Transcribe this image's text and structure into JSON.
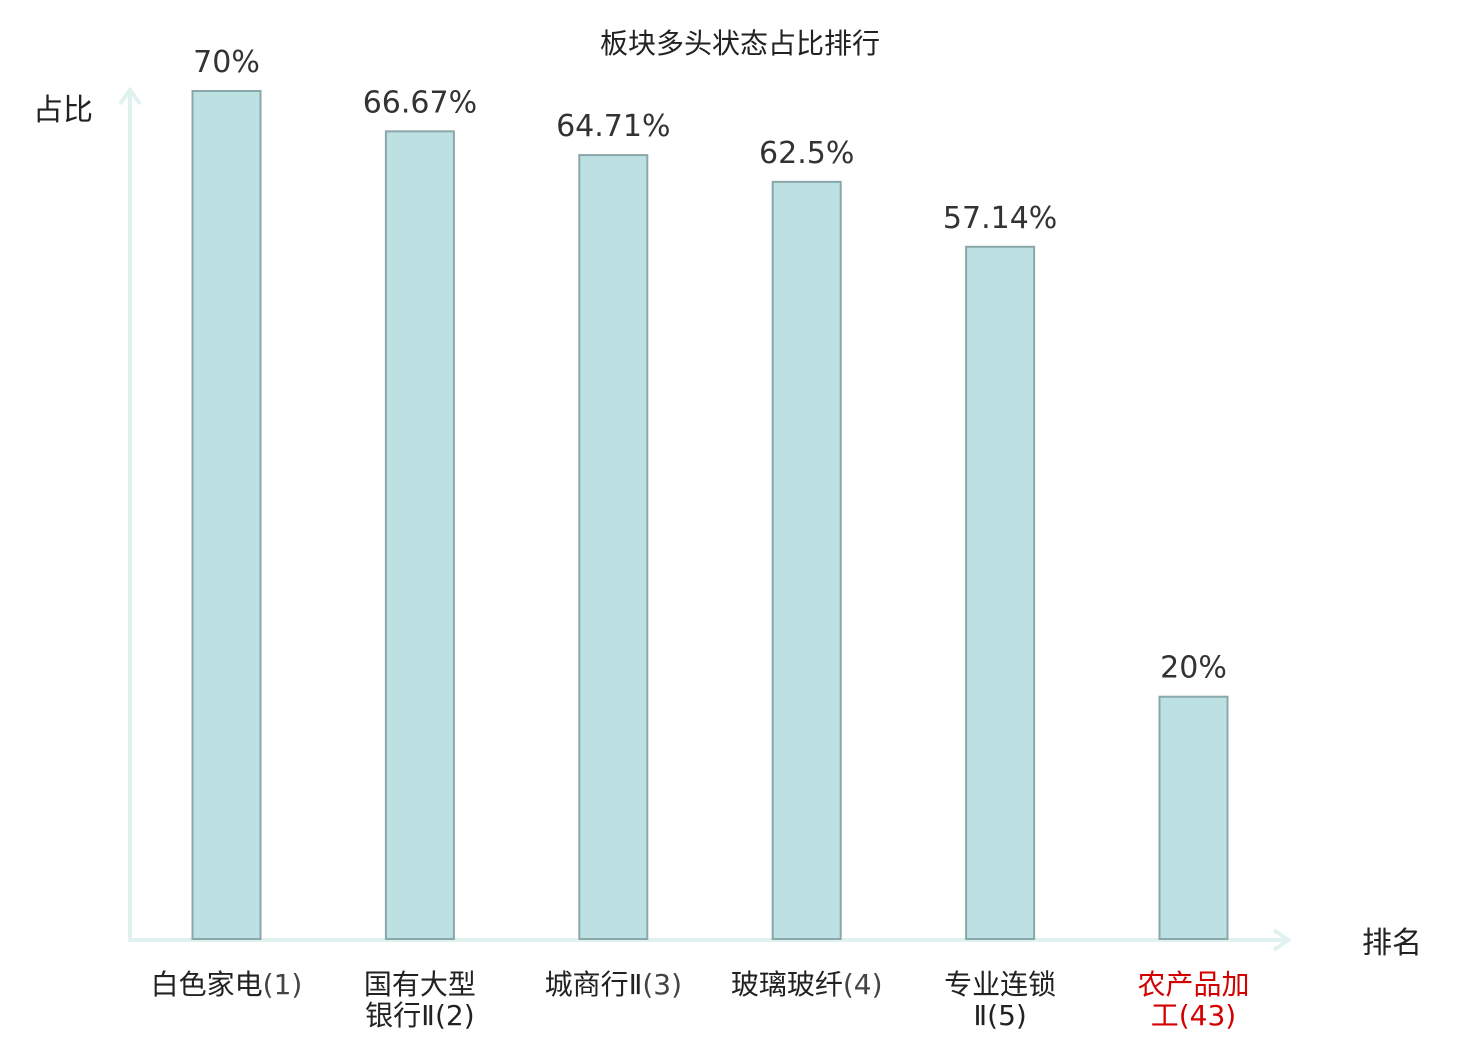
{
  "chart_data": {
    "type": "bar",
    "title": "板块多头状态占比排行",
    "xlabel": "排名",
    "ylabel": "占比",
    "ylim": [
      0,
      70
    ],
    "grid": false,
    "legend": "none",
    "categories": [
      {
        "lines": [
          "白色家电",
          "(1)"
        ],
        "highlight": false
      },
      {
        "lines": [
          "国有大型",
          "银行Ⅱ(2)"
        ],
        "highlight": false
      },
      {
        "lines": [
          "城商行Ⅱ",
          "(3)"
        ],
        "highlight": false
      },
      {
        "lines": [
          "玻璃玻纤",
          "(4)"
        ],
        "highlight": false
      },
      {
        "lines": [
          "专业连锁",
          "Ⅱ(5)"
        ],
        "highlight": false
      },
      {
        "lines": [
          "农产品加",
          "工(43)"
        ],
        "highlight": true
      }
    ],
    "values": [
      70,
      66.67,
      64.71,
      62.5,
      57.14,
      20
    ],
    "value_labels": [
      "70%",
      "66.67%",
      "64.71%",
      "62.5%",
      "57.14%",
      "20%"
    ],
    "colors": {
      "bar_fill": "#bde0e3",
      "bar_stroke": "#8aa7a9",
      "axis": "#e0f2ef",
      "highlight_text": "#d40000",
      "text": "#222222",
      "rank_text": "#444444"
    }
  }
}
